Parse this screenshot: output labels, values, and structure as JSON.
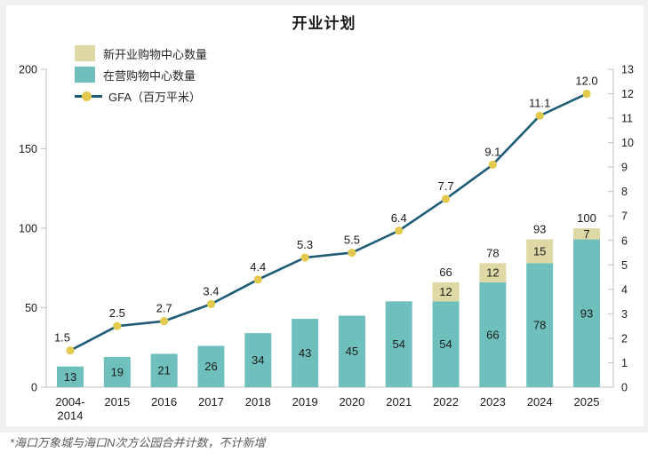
{
  "title": "开业计划",
  "footnote": "*海口万象城与海口N次方公园合并计数，不计新增",
  "legend": {
    "items": [
      {
        "label": "新开业购物中心数量",
        "swatch": "beige-square"
      },
      {
        "label": "在营购物中心数量",
        "swatch": "teal-square"
      },
      {
        "label": "GFA（百万平米）",
        "swatch": "line-with-dot"
      }
    ]
  },
  "colors": {
    "bar_operating": "#6FC0BD",
    "bar_new_open": "#DDD8A4",
    "gfa_line": "#1F5C78",
    "gfa_marker": "#E3C94E",
    "axis": "#BFBFBF",
    "text": "#1A1A1A",
    "footnote": "#595959",
    "backdrop": "#F1F1F1"
  },
  "chart_data": {
    "type": "bar+line",
    "title": "开业计划",
    "categories": [
      "2004-2014",
      "2015",
      "2016",
      "2017",
      "2018",
      "2019",
      "2020",
      "2021",
      "2022",
      "2023",
      "2024",
      "2025"
    ],
    "series": [
      {
        "name": "在营购物中心数量",
        "type": "bar",
        "stack": "total",
        "axis": "left",
        "color": "#6FC0BD",
        "values": [
          13,
          19,
          21,
          26,
          34,
          43,
          45,
          54,
          54,
          66,
          78,
          93
        ]
      },
      {
        "name": "新开业购物中心数量",
        "type": "bar",
        "stack": "total",
        "axis": "left",
        "color": "#DDD8A4",
        "values": [
          0,
          0,
          0,
          0,
          0,
          0,
          0,
          0,
          12,
          12,
          15,
          7
        ]
      },
      {
        "name": "GFA（百万平米）",
        "type": "line",
        "axis": "right",
        "color": "#1F5C78",
        "marker_color": "#E3C94E",
        "values": [
          1.5,
          2.5,
          2.7,
          3.4,
          4.4,
          5.3,
          5.5,
          6.4,
          7.7,
          9.1,
          11.1,
          12.0
        ],
        "value_labels": [
          "1.5",
          "2.5",
          "2.7",
          "3.4",
          "4.4",
          "5.3",
          "5.5",
          "6.4",
          "7.7",
          "9.1",
          "11.1",
          "12.0"
        ]
      }
    ],
    "stack_total_labels": [
      "",
      "",
      "",
      "",
      "",
      "",
      "",
      "",
      "66",
      "78",
      "93",
      "100"
    ],
    "left_axis": {
      "min": 0,
      "max": 200,
      "step": 50,
      "ticks": [
        "0",
        "50",
        "100",
        "150",
        "200"
      ]
    },
    "right_axis": {
      "min": 0,
      "max": 13,
      "step": 1,
      "ticks": [
        "0",
        "1",
        "2",
        "3",
        "4",
        "5",
        "6",
        "7",
        "8",
        "9",
        "10",
        "11",
        "12",
        "13"
      ]
    },
    "legend_position": "top-left",
    "grid": false
  }
}
